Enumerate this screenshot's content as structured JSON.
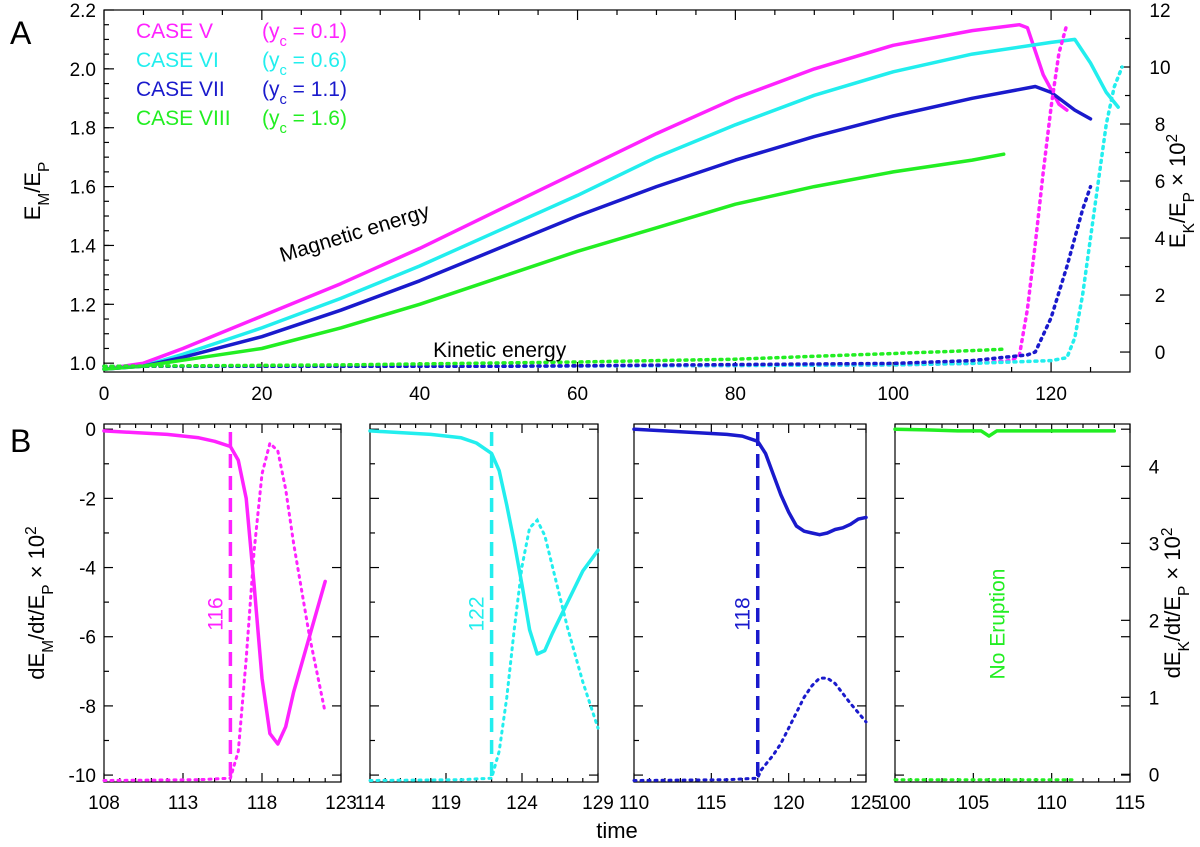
{
  "panel_labels": {
    "a": "A",
    "b": "B"
  },
  "chart_data": [
    {
      "type": "line",
      "title": "",
      "xlabel": "",
      "ylabel_left": "E_M/E_P",
      "ylabel_right": "E_K/E_P × 10²",
      "xlim": [
        0,
        130
      ],
      "ylim": [
        0.97,
        2.2
      ],
      "ylim_right": [
        -0.7,
        12
      ],
      "x_ticks": [
        0,
        20,
        40,
        60,
        80,
        100,
        120
      ],
      "x_tick_labels": [
        "0",
        "20",
        "40",
        "60",
        "80",
        "100",
        "120"
      ],
      "y_ticks": [
        1.0,
        1.2,
        1.4,
        1.6,
        1.8,
        2.0,
        2.2
      ],
      "y_tick_labels": [
        "1.0",
        "1.2",
        "1.4",
        "1.6",
        "1.8",
        "2.0",
        "2.2"
      ],
      "y2_ticks": [
        0,
        2,
        4,
        6,
        8,
        10,
        12
      ],
      "y2_tick_labels": [
        "0",
        "2",
        "4",
        "6",
        "8",
        "10",
        "12"
      ],
      "annotations": [
        {
          "text": "Magnetic energy",
          "x": 32,
          "y": 1.42,
          "angle": -17
        },
        {
          "text": "Kinetic energy",
          "x": 40,
          "y": 1.0,
          "angle": 0
        }
      ],
      "legend": [
        {
          "case": "CASE V",
          "yc": "(y",
          "sub": "c",
          "val": " = 0.1)",
          "color": "#ff22ff"
        },
        {
          "case": "CASE VI",
          "yc": "(y",
          "sub": "c",
          "val": " = 0.6)",
          "color": "#22eeee"
        },
        {
          "case": "CASE VII",
          "yc": "(y",
          "sub": "c",
          "val": " = 1.1)",
          "color": "#1a1acc"
        },
        {
          "case": "CASE VIII",
          "yc": "(y",
          "sub": "c",
          "val": " = 1.6)",
          "color": "#22ee22"
        }
      ],
      "series": [
        {
          "name": "CASE V magnetic",
          "color": "#ff22ff",
          "style": "solid",
          "axis": "left",
          "x": [
            0,
            5,
            10,
            20,
            30,
            40,
            50,
            60,
            70,
            80,
            90,
            100,
            110,
            116,
            117,
            119,
            121,
            122
          ],
          "y": [
            0.98,
            1.0,
            1.05,
            1.16,
            1.27,
            1.39,
            1.52,
            1.65,
            1.78,
            1.9,
            2.0,
            2.08,
            2.13,
            2.15,
            2.14,
            1.98,
            1.88,
            1.86
          ]
        },
        {
          "name": "CASE VI magnetic",
          "color": "#22eeee",
          "style": "solid",
          "axis": "left",
          "x": [
            0,
            5,
            10,
            20,
            30,
            40,
            50,
            60,
            70,
            80,
            90,
            100,
            110,
            120,
            123,
            125,
            127,
            128.5
          ],
          "y": [
            0.98,
            0.99,
            1.03,
            1.12,
            1.22,
            1.33,
            1.45,
            1.57,
            1.7,
            1.81,
            1.91,
            1.99,
            2.05,
            2.09,
            2.1,
            2.02,
            1.92,
            1.87
          ]
        },
        {
          "name": "CASE VII magnetic",
          "color": "#1a1acc",
          "style": "solid",
          "axis": "left",
          "x": [
            0,
            5,
            10,
            20,
            30,
            40,
            50,
            60,
            70,
            80,
            90,
            100,
            110,
            118,
            120,
            123,
            125
          ],
          "y": [
            0.98,
            0.99,
            1.02,
            1.09,
            1.18,
            1.28,
            1.39,
            1.5,
            1.6,
            1.69,
            1.77,
            1.84,
            1.9,
            1.94,
            1.92,
            1.86,
            1.83
          ]
        },
        {
          "name": "CASE VIII magnetic",
          "color": "#22ee22",
          "style": "solid",
          "axis": "left",
          "x": [
            0,
            5,
            10,
            20,
            30,
            40,
            50,
            60,
            70,
            80,
            90,
            100,
            110,
            114
          ],
          "y": [
            0.98,
            0.99,
            1.01,
            1.05,
            1.12,
            1.2,
            1.29,
            1.38,
            1.46,
            1.54,
            1.6,
            1.65,
            1.69,
            1.71
          ]
        },
        {
          "name": "CASE V kinetic",
          "color": "#ff22ff",
          "style": "dotted",
          "axis": "right",
          "x": [
            0,
            50,
            100,
            110,
            115,
            116,
            117,
            118,
            119,
            120,
            121,
            122
          ],
          "y": [
            -0.5,
            -0.5,
            -0.45,
            -0.4,
            -0.3,
            -0.1,
            1.5,
            3.8,
            6.3,
            8.6,
            10.5,
            11.5
          ]
        },
        {
          "name": "CASE VI kinetic",
          "color": "#22eeee",
          "style": "dotted",
          "axis": "right",
          "x": [
            0,
            50,
            100,
            110,
            120,
            122,
            123,
            124,
            125,
            126,
            127,
            128,
            129
          ],
          "y": [
            -0.5,
            -0.5,
            -0.45,
            -0.4,
            -0.3,
            -0.2,
            0.5,
            2.0,
            4.0,
            6.0,
            8.0,
            9.3,
            10.0
          ]
        },
        {
          "name": "CASE VII kinetic",
          "color": "#1a1acc",
          "style": "dotted",
          "axis": "right",
          "x": [
            0,
            50,
            100,
            110,
            117,
            118,
            120,
            122,
            124,
            125
          ],
          "y": [
            -0.5,
            -0.5,
            -0.4,
            -0.3,
            -0.1,
            0.0,
            1.2,
            3.0,
            5.0,
            5.8
          ]
        },
        {
          "name": "CASE VIII kinetic",
          "color": "#22ee22",
          "style": "dotted",
          "axis": "right",
          "x": [
            0,
            30,
            60,
            80,
            90,
            100,
            110,
            114
          ],
          "y": [
            -0.5,
            -0.45,
            -0.35,
            -0.25,
            -0.15,
            -0.05,
            0.05,
            0.1
          ]
        }
      ]
    },
    {
      "type": "line",
      "title": "",
      "xlabel": "time",
      "ylabel_left": "dE_M/dt/E_P × 10²",
      "ylabel_right": "dE_K/dt/E_P × 10²",
      "ylim": [
        -10.2,
        0.15
      ],
      "ylim_right": [
        -0.1,
        4.55
      ],
      "y_ticks": [
        0,
        -2,
        -4,
        -6,
        -8,
        -10
      ],
      "y_tick_labels": [
        "0",
        "-2",
        "-4",
        "-6",
        "-8",
        "-10"
      ],
      "y2_ticks": [
        0,
        1,
        2,
        3,
        4
      ],
      "y2_tick_labels": [
        "0",
        "1",
        "2",
        "3",
        "4"
      ],
      "panels": [
        {
          "color": "#ff22ff",
          "xlim": [
            108,
            123
          ],
          "x_ticks": [
            108,
            113,
            118,
            123
          ],
          "x_tick_labels": [
            "108",
            "113",
            "118",
            "123"
          ],
          "onset": 116,
          "onset_label": "116",
          "solid": {
            "x": [
              108,
              110,
              112,
              114,
              115,
              116,
              116.5,
              117,
              117.5,
              118,
              118.5,
              119,
              119.5,
              120,
              121,
              122
            ],
            "y": [
              -0.05,
              -0.1,
              -0.15,
              -0.25,
              -0.35,
              -0.5,
              -0.9,
              -2.0,
              -4.5,
              -7.2,
              -8.8,
              -9.1,
              -8.6,
              -7.6,
              -6.0,
              -4.4
            ]
          },
          "dotted": {
            "x": [
              108,
              114,
              116,
              116.5,
              117,
              117.5,
              118,
              118.5,
              119,
              119.5,
              120,
              121,
              122
            ],
            "y": [
              -0.08,
              -0.07,
              -0.05,
              0.3,
              1.5,
              2.9,
              3.9,
              4.3,
              4.2,
              3.7,
              3.0,
              1.8,
              0.8
            ]
          }
        },
        {
          "color": "#22eeee",
          "xlim": [
            114,
            129
          ],
          "x_ticks": [
            114,
            119,
            124,
            129
          ],
          "x_tick_labels": [
            "114",
            "119",
            "124",
            "129"
          ],
          "onset": 122,
          "onset_label": "122",
          "solid": {
            "x": [
              114,
              116,
              118,
              120,
              121,
              122,
              122.5,
              123,
              123.5,
              124,
              124.5,
              125,
              125.5,
              126,
              127,
              128,
              129
            ],
            "y": [
              -0.05,
              -0.1,
              -0.15,
              -0.25,
              -0.4,
              -0.7,
              -1.2,
              -2.2,
              -3.3,
              -4.5,
              -5.8,
              -6.5,
              -6.4,
              -5.9,
              -5.0,
              -4.1,
              -3.5
            ]
          },
          "dotted": {
            "x": [
              114,
              120,
              122,
              122.5,
              123,
              123.5,
              124,
              124.5,
              125,
              125.5,
              126,
              127,
              128,
              129
            ],
            "y": [
              -0.08,
              -0.07,
              -0.05,
              0.3,
              1.0,
              1.9,
              2.7,
              3.2,
              3.3,
              3.1,
              2.7,
              1.9,
              1.2,
              0.6
            ]
          }
        },
        {
          "color": "#1a1acc",
          "xlim": [
            110,
            125
          ],
          "x_ticks": [
            110,
            115,
            120,
            125
          ],
          "x_tick_labels": [
            "110",
            "115",
            "120",
            "125"
          ],
          "onset": 118,
          "onset_label": "118",
          "solid": {
            "x": [
              110,
              112,
              114,
              116,
              117,
              118,
              118.5,
              119,
              119.5,
              120,
              120.5,
              121,
              121.5,
              122,
              122.5,
              123,
              123.5,
              124,
              124.5,
              125
            ],
            "y": [
              0.0,
              -0.05,
              -0.1,
              -0.15,
              -0.2,
              -0.35,
              -0.7,
              -1.3,
              -1.9,
              -2.4,
              -2.8,
              -2.95,
              -3.0,
              -3.05,
              -3.0,
              -2.9,
              -2.85,
              -2.75,
              -2.6,
              -2.55
            ]
          },
          "dotted": {
            "x": [
              110,
              116,
              118,
              118.2,
              119,
              119.5,
              120,
              120.5,
              121,
              121.5,
              122,
              122.5,
              123,
              123.5,
              124,
              124.5,
              125
            ],
            "y": [
              -0.08,
              -0.07,
              -0.05,
              0.05,
              0.25,
              0.4,
              0.6,
              0.8,
              1.0,
              1.15,
              1.25,
              1.25,
              1.18,
              1.05,
              0.92,
              0.8,
              0.68
            ]
          }
        },
        {
          "color": "#22ee22",
          "xlim": [
            100,
            115
          ],
          "x_ticks": [
            100,
            105,
            110,
            115
          ],
          "x_tick_labels": [
            "100",
            "105",
            "110",
            "115"
          ],
          "onset": null,
          "onset_label": "No Eruption",
          "solid": {
            "x": [
              100,
              102,
              104,
              105.5,
              106,
              106.5,
              107,
              109,
              111,
              113,
              114
            ],
            "y": [
              0.0,
              -0.02,
              -0.05,
              -0.05,
              -0.2,
              -0.05,
              -0.05,
              -0.05,
              -0.05,
              -0.05,
              -0.05
            ]
          },
          "dotted": {
            "x": [
              100,
              105,
              110,
              111.5
            ],
            "y": [
              -0.07,
              -0.07,
              -0.07,
              -0.07
            ]
          }
        }
      ]
    }
  ]
}
